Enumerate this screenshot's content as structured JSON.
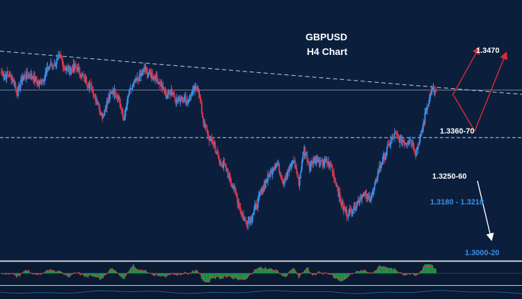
{
  "chart_data": {
    "type": "candlestick",
    "title": "GBPUSD",
    "subtitle": "H4 Chart",
    "xlabel": "",
    "ylabel": "",
    "ylim": [
      1.2975,
      1.3525
    ],
    "grid": false,
    "colors": {
      "background": "#0b1f3c",
      "bull_candle": "#3b8fe6",
      "bear_candle": "#d9354a",
      "projection_up": "#e02b35",
      "projection_down": "#ffffff",
      "indicator_bars": "#1fa94a",
      "indicator_line": "#d9354a",
      "level_line": "#c9d2de",
      "level_text_white": "#ffffff",
      "level_text_blue": "#3b8fe6"
    },
    "levels": [
      {
        "label": "1.3470",
        "value": 1.347,
        "text_color": "white"
      },
      {
        "label": "1.3360-70",
        "value": 1.3365,
        "text_color": "white"
      },
      {
        "label": "1.3250-60",
        "value": 1.3255,
        "text_color": "white"
      },
      {
        "label": "1.3180 - 1.3210",
        "value": 1.3195,
        "text_color": "blue"
      },
      {
        "label": "1.3000-20",
        "value": 1.301,
        "text_color": "blue"
      }
    ],
    "horizontal_lines": [
      {
        "value": 1.3365,
        "style": "solid"
      },
      {
        "value": 1.3255,
        "style": "dashed"
      }
    ],
    "trendline": {
      "start": 1.3455,
      "end": 1.3355,
      "style": "dashed"
    },
    "path": [
      1.3405,
      1.34,
      1.3395,
      1.336,
      1.3395,
      1.34,
      1.3395,
      1.338,
      1.3395,
      1.342,
      1.3425,
      1.344,
      1.3415,
      1.3412,
      1.342,
      1.34,
      1.3385,
      1.337,
      1.334,
      1.3305,
      1.334,
      1.3365,
      1.335,
      1.3295,
      1.3355,
      1.338,
      1.3395,
      1.3415,
      1.3402,
      1.3395,
      1.3378,
      1.3352,
      1.3365,
      1.334,
      1.335,
      1.3338,
      1.336,
      1.3375,
      1.3292,
      1.3255,
      1.324,
      1.32,
      1.319,
      1.316,
      1.313,
      1.3085,
      1.306,
      1.3068,
      1.31,
      1.3132,
      1.3158,
      1.3185,
      1.3195,
      1.3155,
      1.3175,
      1.3205,
      1.315,
      1.323,
      1.319,
      1.321,
      1.3192,
      1.32,
      1.319,
      1.315,
      1.31,
      1.308,
      1.309,
      1.3105,
      1.3125,
      1.3112,
      1.3128,
      1.318,
      1.321,
      1.324,
      1.326,
      1.3252,
      1.3245,
      1.325,
      1.3222,
      1.3262,
      1.3322,
      1.3365,
      1.336
    ],
    "projection": [
      {
        "label": "1.3470",
        "points": [
          [
            1.3352
          ],
          [
            1.3462
          ]
        ]
      },
      {
        "label": "1.3470",
        "points": [
          [
            1.3352
          ],
          [
            1.327
          ],
          [
            1.345
          ]
        ]
      },
      {
        "label": "1.3000-20",
        "points": [
          [
            1.3155
          ],
          [
            1.302
          ]
        ]
      }
    ]
  }
}
